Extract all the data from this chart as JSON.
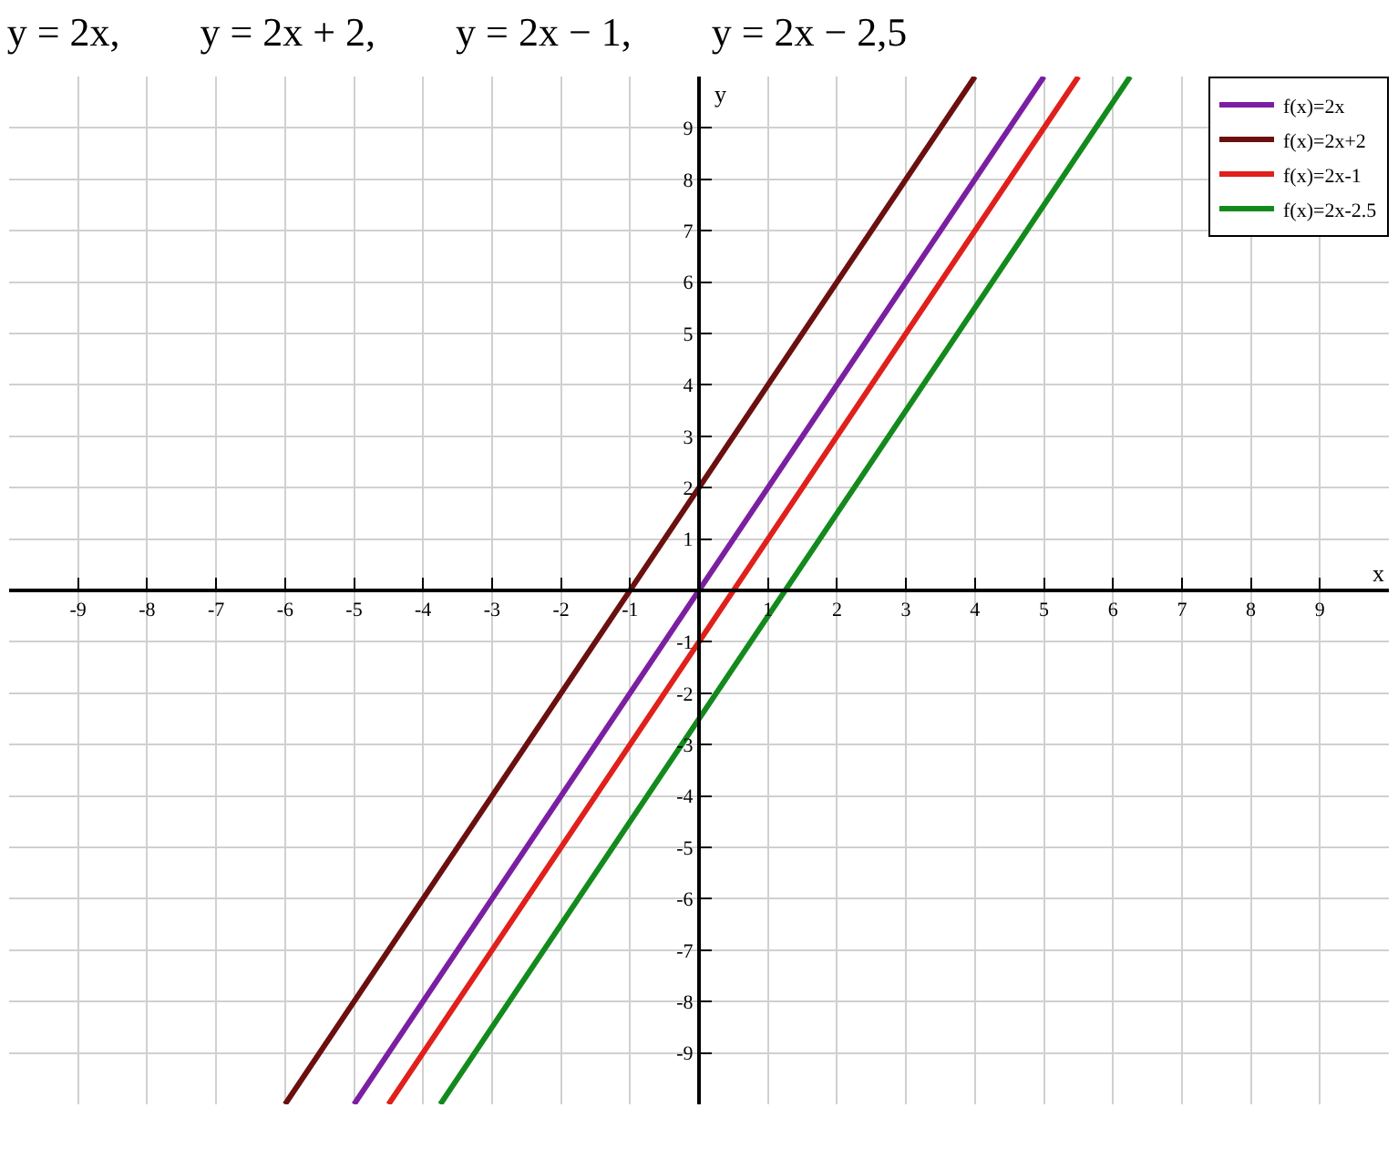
{
  "chart_data": {
    "type": "line",
    "title": "y = 2x,        y = 2x + 2,        y = 2x − 1,        y = 2x − 2,5",
    "xlabel": "x",
    "ylabel": "y",
    "series": [
      {
        "name": "f(x)=2x",
        "color": "#7b1fa2",
        "x": [
          -5,
          5
        ],
        "values": [
          -10,
          10
        ]
      },
      {
        "name": "f(x)=2x+2",
        "color": "#6b0f0f",
        "x": [
          -6,
          4
        ],
        "values": [
          -10,
          10
        ]
      },
      {
        "name": "f(x)=2x-1",
        "color": "#e0201b",
        "x": [
          -4.5,
          5.5
        ],
        "values": [
          -10,
          10
        ]
      },
      {
        "name": "f(x)=2x-2.5",
        "color": "#138a1c",
        "x": [
          -3.75,
          6.25
        ],
        "values": [
          -10,
          10
        ]
      }
    ],
    "xlim": [
      -10,
      10
    ],
    "ylim": [
      -10,
      10
    ],
    "xticks": [
      -9,
      -8,
      -7,
      -6,
      -5,
      -4,
      -3,
      -2,
      -1,
      1,
      2,
      3,
      4,
      5,
      6,
      7,
      8,
      9
    ],
    "yticks": [
      -9,
      -8,
      -7,
      -6,
      -5,
      -4,
      -3,
      -2,
      -1,
      1,
      2,
      3,
      4,
      5,
      6,
      7,
      8,
      9
    ],
    "grid": true,
    "legend": "top right",
    "marker": "none",
    "line_style": "solid"
  }
}
